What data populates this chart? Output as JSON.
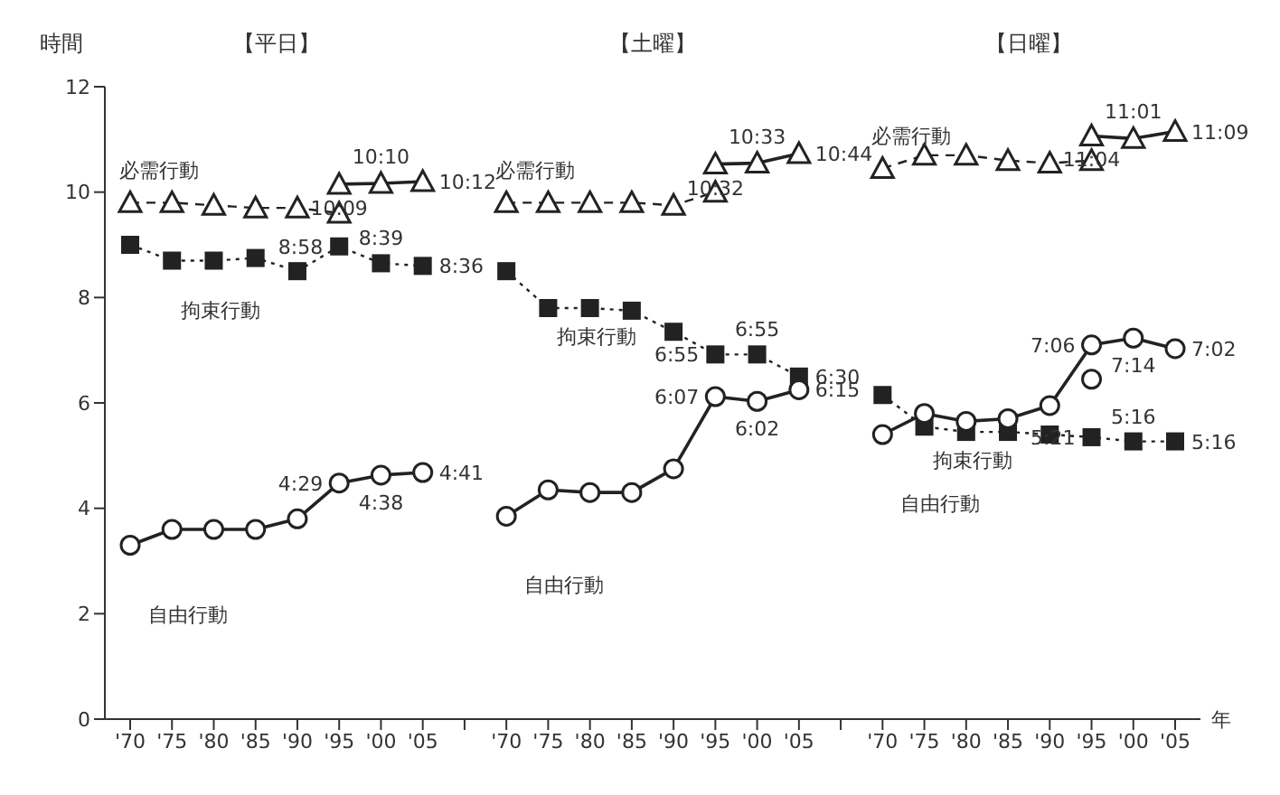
{
  "chart_data": {
    "type": "line",
    "ylabel": "時間",
    "xlabel": "年",
    "categories": [
      "'70",
      "'75",
      "'80",
      "'85",
      "'90",
      "'95",
      "'00",
      "'05",
      null,
      "'70",
      "'75",
      "'80",
      "'85",
      "'90",
      "'95",
      "'00",
      "'05",
      null,
      "'70",
      "'75",
      "'80",
      "'85",
      "'90",
      "'95",
      "'00",
      "'05"
    ],
    "annotations": [
      "【平日】",
      "【土曜】",
      "【日曜】"
    ],
    "ylim": [
      0,
      12
    ],
    "yticks": [
      0,
      2,
      4,
      6,
      8,
      10,
      12
    ],
    "grid": false,
    "legend": false,
    "series": [
      {
        "name": "必需行動",
        "color": "#222222",
        "marker": "triangle",
        "line_style": "dashed",
        "values": [
          9.8,
          9.8,
          9.75,
          9.7,
          9.7,
          9.6,
          null,
          null,
          null,
          9.8,
          9.8,
          9.8,
          9.8,
          9.75,
          10.0,
          null,
          null,
          null,
          10.45,
          10.7,
          10.7,
          10.6,
          10.55,
          10.6,
          null,
          null
        ]
      },
      {
        "color": "#222222",
        "marker": "triangle",
        "line_style": "solid",
        "values": [
          null,
          null,
          null,
          null,
          null,
          10.15,
          10.167,
          10.2,
          null,
          null,
          null,
          null,
          null,
          null,
          10.533,
          10.55,
          10.733,
          null,
          null,
          null,
          null,
          null,
          null,
          11.067,
          11.017,
          11.15
        ],
        "value_labels": [
          null,
          null,
          null,
          null,
          null,
          "10:09",
          "10:10",
          "10:12",
          null,
          null,
          null,
          null,
          null,
          null,
          "10:32",
          "10:33",
          "10:44",
          null,
          null,
          null,
          null,
          null,
          null,
          "11:04",
          "11:01",
          "11:09"
        ]
      },
      {
        "name": "拘束行動",
        "color": "#222222",
        "marker": "square",
        "line_style": "dotted",
        "values": [
          9.0,
          8.7,
          8.7,
          8.75,
          8.5,
          8.97,
          8.65,
          8.6,
          null,
          8.5,
          7.8,
          7.8,
          7.75,
          7.35,
          6.92,
          6.92,
          6.5,
          null,
          6.15,
          5.55,
          5.45,
          5.45,
          5.4,
          5.35,
          5.27,
          5.27
        ],
        "value_labels": [
          null,
          null,
          null,
          null,
          null,
          "8:58",
          "8:39",
          "8:36",
          null,
          null,
          null,
          null,
          null,
          null,
          "6:55",
          "6:55",
          "6:30",
          null,
          null,
          null,
          null,
          null,
          null,
          "5:21",
          "5:16",
          "5:16"
        ]
      },
      {
        "name": "自由行動",
        "color": "#222222",
        "marker": "circle",
        "line_style": "solid",
        "values": [
          3.3,
          3.6,
          3.6,
          3.6,
          3.8,
          4.48,
          4.63,
          4.68,
          null,
          3.85,
          4.35,
          4.3,
          4.3,
          4.75,
          6.12,
          6.03,
          6.25,
          null,
          5.4,
          5.8,
          5.65,
          5.7,
          5.95,
          7.1,
          7.23,
          7.03
        ],
        "value_labels": [
          null,
          null,
          null,
          null,
          null,
          "4:29",
          "4:38",
          "4:41",
          null,
          null,
          null,
          null,
          null,
          null,
          "6:07",
          "6:02",
          "6:15",
          null,
          null,
          null,
          null,
          null,
          null,
          "7:06",
          "7:14",
          "7:02"
        ]
      },
      {
        "color": "#222222",
        "marker": "circle",
        "line_style": "solid",
        "values": [
          null,
          null,
          null,
          null,
          null,
          null,
          null,
          null,
          null,
          null,
          null,
          null,
          null,
          null,
          null,
          null,
          null,
          null,
          null,
          null,
          null,
          null,
          null,
          6.45,
          null,
          null
        ]
      }
    ]
  }
}
